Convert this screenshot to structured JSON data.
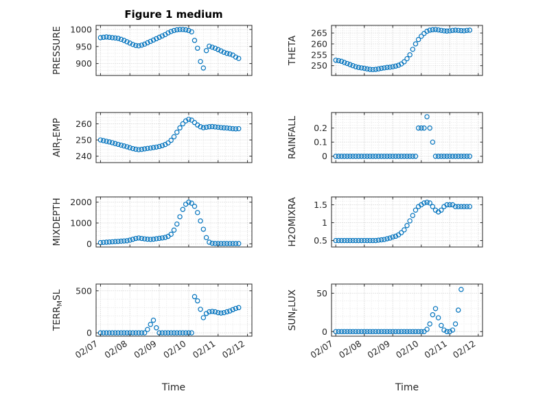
{
  "figure": {
    "title": "Figure 1 medium",
    "xlabel": "Time",
    "marker_color": "#0072BD",
    "axes_color": "#262626",
    "xlim": [
      6.85,
      12.15
    ],
    "xticks": [
      7,
      8,
      9,
      10,
      11,
      12
    ],
    "xtick_labels": [
      "02/07",
      "02/08",
      "02/09",
      "02/10",
      "02/11",
      "02/12"
    ]
  },
  "chart_data": [
    {
      "id": "pressure",
      "type": "scatter",
      "ylabel": {
        "pre": "PRESSURE",
        "sub": "",
        "post": ""
      },
      "yticks": [
        900,
        950,
        1000
      ],
      "ylim": [
        865,
        1012
      ],
      "x_start": 7.0,
      "x_step": 0.1,
      "values": [
        976,
        977,
        978,
        977,
        976,
        975,
        974,
        971,
        968,
        964,
        960,
        956,
        953,
        952,
        954,
        957,
        961,
        965,
        969,
        973,
        977,
        981,
        985,
        990,
        994,
        997,
        999,
        1000,
        1000,
        999,
        997,
        993,
        968,
        945,
        906,
        887,
        938,
        951,
        948,
        945,
        941,
        937,
        933,
        930,
        928,
        925,
        919,
        915
      ]
    },
    {
      "id": "theta",
      "type": "scatter",
      "ylabel": {
        "pre": "THETA",
        "sub": "",
        "post": ""
      },
      "yticks": [
        250,
        255,
        260,
        265
      ],
      "ylim": [
        245.5,
        268.5
      ],
      "x_start": 7.0,
      "x_step": 0.1,
      "values": [
        252.5,
        252.3,
        252,
        251.5,
        251,
        250.5,
        250,
        249.5,
        249.2,
        249,
        248.8,
        248.5,
        248.3,
        248.2,
        248.3,
        248.5,
        248.8,
        249,
        249.2,
        249.3,
        249.5,
        249.8,
        250.2,
        250.8,
        251.8,
        253.2,
        255,
        257.5,
        260,
        262,
        263.5,
        264.8,
        265.8,
        266.3,
        266.5,
        266.6,
        266.4,
        266.2,
        266,
        265.9,
        266,
        266.2,
        266.3,
        266.2,
        266.1,
        266,
        266.2,
        266.3
      ]
    },
    {
      "id": "airtemp",
      "type": "scatter",
      "ylabel": {
        "pre": "AIR",
        "sub": "T",
        "post": "EMP"
      },
      "yticks": [
        240,
        250,
        260
      ],
      "ylim": [
        236,
        267
      ],
      "x_start": 7.0,
      "x_step": 0.1,
      "values": [
        250,
        249.6,
        249.2,
        248.8,
        248.3,
        247.8,
        247.3,
        246.8,
        246.3,
        245.8,
        245.2,
        244.7,
        244.3,
        244,
        244.2,
        244.5,
        244.8,
        245,
        245.3,
        245.6,
        246,
        246.5,
        247.2,
        248.2,
        249.8,
        252,
        254.8,
        257.5,
        260,
        261.8,
        262.8,
        262.3,
        260.8,
        259.3,
        258.2,
        257.6,
        257.9,
        258.2,
        258.3,
        258.1,
        257.9,
        257.7,
        257.5,
        257.4,
        257.2,
        257,
        256.9,
        257
      ]
    },
    {
      "id": "rainfall",
      "type": "scatter",
      "ylabel": {
        "pre": "RAINFALL",
        "sub": "",
        "post": ""
      },
      "yticks": [
        0,
        0.1,
        0.2
      ],
      "ylim": [
        -0.045,
        0.31
      ],
      "x_start": 7.0,
      "x_step": 0.1,
      "values": [
        0,
        0,
        0,
        0,
        0,
        0,
        0,
        0,
        0,
        0,
        0,
        0,
        0,
        0,
        0,
        0,
        0,
        0,
        0,
        0,
        0,
        0,
        0,
        0,
        0,
        0,
        0,
        0,
        0,
        0.2,
        0.2,
        0.2,
        0.28,
        0.2,
        0.1,
        0,
        0,
        0,
        0,
        0,
        0,
        0,
        0,
        0,
        0,
        0,
        0,
        0
      ]
    },
    {
      "id": "mixdepth",
      "type": "scatter",
      "ylabel": {
        "pre": "MIXDEPTH",
        "sub": "",
        "post": ""
      },
      "yticks": [
        0,
        1000,
        2000
      ],
      "ylim": [
        -150,
        2250
      ],
      "x_start": 7.0,
      "x_step": 0.1,
      "values": [
        60,
        70,
        80,
        90,
        100,
        110,
        120,
        130,
        140,
        150,
        180,
        220,
        260,
        280,
        260,
        240,
        225,
        215,
        225,
        245,
        265,
        285,
        310,
        360,
        460,
        660,
        950,
        1300,
        1650,
        1900,
        2000,
        1950,
        1800,
        1500,
        1100,
        700,
        300,
        80,
        30,
        20,
        15,
        15,
        15,
        15,
        15,
        15,
        15,
        15
      ]
    },
    {
      "id": "h2omixra",
      "type": "scatter",
      "ylabel": {
        "pre": "H2OMIXRA",
        "sub": "",
        "post": ""
      },
      "yticks": [
        0.5,
        1,
        1.5
      ],
      "ylim": [
        0.32,
        1.72
      ],
      "x_start": 7.0,
      "x_step": 0.1,
      "values": [
        0.5,
        0.5,
        0.5,
        0.5,
        0.5,
        0.5,
        0.5,
        0.5,
        0.5,
        0.5,
        0.5,
        0.5,
        0.5,
        0.5,
        0.5,
        0.51,
        0.52,
        0.53,
        0.55,
        0.57,
        0.6,
        0.62,
        0.66,
        0.72,
        0.8,
        0.92,
        1.05,
        1.2,
        1.35,
        1.45,
        1.5,
        1.55,
        1.57,
        1.55,
        1.45,
        1.35,
        1.3,
        1.35,
        1.45,
        1.5,
        1.5,
        1.5,
        1.45,
        1.45,
        1.45,
        1.45,
        1.45,
        1.45
      ]
    },
    {
      "id": "terrmsl",
      "type": "scatter",
      "ylabel": {
        "pre": "TERR",
        "sub": "M",
        "post": "SL"
      },
      "yticks": [
        0,
        500
      ],
      "ylim": [
        -40,
        580
      ],
      "x_start": 7.0,
      "x_step": 0.1,
      "values": [
        0,
        0,
        0,
        0,
        0,
        0,
        0,
        0,
        0,
        0,
        0,
        0,
        0,
        0,
        0,
        0,
        40,
        100,
        150,
        60,
        0,
        0,
        0,
        0,
        0,
        0,
        0,
        0,
        0,
        0,
        0,
        0,
        430,
        380,
        280,
        180,
        230,
        250,
        255,
        250,
        240,
        235,
        240,
        250,
        260,
        275,
        290,
        300
      ]
    },
    {
      "id": "sunflux",
      "type": "scatter",
      "ylabel": {
        "pre": "SUN",
        "sub": "F",
        "post": "LUX"
      },
      "yticks": [
        0,
        50
      ],
      "ylim": [
        -6,
        62
      ],
      "x_start": 7.0,
      "x_step": 0.1,
      "values": [
        0,
        0,
        0,
        0,
        0,
        0,
        0,
        0,
        0,
        0,
        0,
        0,
        0,
        0,
        0,
        0,
        0,
        0,
        0,
        0,
        0,
        0,
        0,
        0,
        0,
        0,
        0,
        0,
        0,
        0,
        0,
        0,
        3,
        10,
        22,
        30,
        18,
        8,
        2,
        0,
        0,
        2,
        10,
        28,
        55,
        null,
        null,
        null
      ]
    }
  ]
}
